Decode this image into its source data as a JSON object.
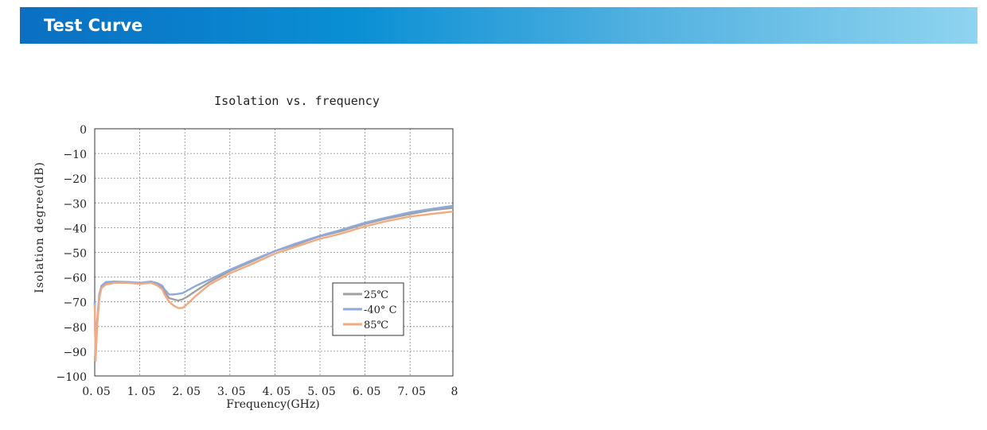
{
  "header": {
    "title": "Test Curve"
  },
  "colors": {
    "header_start": "#0a6fc2",
    "header_end": "#8fd4f0",
    "series_25": "#a0a0a0",
    "series_m40": "#8eaadc",
    "series_85": "#f2aa80"
  },
  "chart_data": {
    "type": "line",
    "title": "Isolation vs. frequency",
    "xlabel": "Frequency(GHz)",
    "ylabel": "Isolation degree(dB)",
    "xlim": [
      0.05,
      8
    ],
    "ylim": [
      -100,
      0
    ],
    "y_ticks": [
      0,
      -10,
      -20,
      -30,
      -40,
      -50,
      -60,
      -70,
      -80,
      -90,
      -100
    ],
    "x_ticks": [
      {
        "value": 0.05,
        "label": "0. 05"
      },
      {
        "value": 1.05,
        "label": "1. 05"
      },
      {
        "value": 2.05,
        "label": "2. 05"
      },
      {
        "value": 3.05,
        "label": "3. 05"
      },
      {
        "value": 4.05,
        "label": "4. 05"
      },
      {
        "value": 5.05,
        "label": "5. 05"
      },
      {
        "value": 6.05,
        "label": "6. 05"
      },
      {
        "value": 7.05,
        "label": "7. 05"
      },
      {
        "value": 8,
        "label": "8"
      }
    ],
    "grid": true,
    "legend_position": "bottom-right",
    "series": [
      {
        "name": "25℃",
        "color": "#a0a0a0",
        "x": [
          0.05,
          0.07,
          0.1,
          0.15,
          0.2,
          0.3,
          0.5,
          0.8,
          1.05,
          1.3,
          1.45,
          1.55,
          1.6,
          1.7,
          1.8,
          1.9,
          2.0,
          2.1,
          2.3,
          2.6,
          3.05,
          3.5,
          4.05,
          4.5,
          5.05,
          5.5,
          6.05,
          6.5,
          7.05,
          7.5,
          8.0
        ],
        "y": [
          -70,
          -93,
          -80,
          -68,
          -64,
          -62.5,
          -62,
          -62,
          -62.5,
          -62,
          -63,
          -64,
          -66,
          -68.5,
          -69,
          -69.5,
          -69,
          -68,
          -65.5,
          -62,
          -57.5,
          -54,
          -49.5,
          -47,
          -43.5,
          -41.5,
          -38.5,
          -36.5,
          -34.5,
          -33,
          -32
        ]
      },
      {
        "name": "-40° C",
        "color": "#8eaadc",
        "x": [
          0.05,
          0.07,
          0.1,
          0.15,
          0.2,
          0.3,
          0.5,
          0.8,
          1.05,
          1.3,
          1.45,
          1.55,
          1.6,
          1.7,
          1.8,
          1.9,
          2.0,
          2.1,
          2.3,
          2.6,
          3.05,
          3.5,
          4.05,
          4.5,
          5.05,
          5.5,
          6.05,
          6.5,
          7.05,
          7.5,
          8.0
        ],
        "y": [
          -70,
          -92,
          -79,
          -67,
          -63.5,
          -62,
          -61.8,
          -62,
          -62.3,
          -61.8,
          -62.5,
          -63.5,
          -65,
          -67,
          -67,
          -66.8,
          -66.5,
          -65.5,
          -63.5,
          -61,
          -57,
          -53.5,
          -49.5,
          -46.5,
          -43.3,
          -41,
          -38,
          -36,
          -33.8,
          -32.5,
          -31.2
        ]
      },
      {
        "name": "85℃",
        "color": "#f2aa80",
        "x": [
          0.05,
          0.07,
          0.1,
          0.15,
          0.2,
          0.3,
          0.5,
          0.8,
          1.05,
          1.3,
          1.45,
          1.55,
          1.6,
          1.7,
          1.8,
          1.9,
          2.0,
          2.1,
          2.3,
          2.6,
          3.05,
          3.5,
          4.05,
          4.5,
          5.05,
          5.5,
          6.05,
          6.5,
          7.05,
          7.5,
          8.0
        ],
        "y": [
          -71,
          -94,
          -81,
          -68.5,
          -64.5,
          -63,
          -62.3,
          -62.3,
          -62.8,
          -62.3,
          -63.5,
          -65,
          -67,
          -70,
          -71.5,
          -72.5,
          -72.5,
          -71,
          -67.5,
          -63,
          -58.5,
          -55,
          -50.5,
          -47.8,
          -44.5,
          -42.5,
          -39.5,
          -37.5,
          -35.5,
          -34.5,
          -33.5
        ]
      }
    ]
  }
}
